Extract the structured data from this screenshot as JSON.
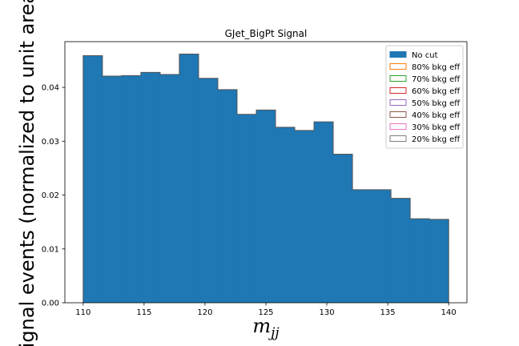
{
  "chart_data": {
    "type": "histogram",
    "title": "GJet_BigPt Signal",
    "xlabel": "m",
    "xlabel_sub": "jj",
    "ylabel": "Signal events (normalized to unit area)",
    "xlim": [
      108.5,
      141.5
    ],
    "ylim": [
      0,
      0.0485
    ],
    "x_ticks": [
      110,
      115,
      120,
      125,
      130,
      135,
      140
    ],
    "x_tick_labels": [
      "110",
      "115",
      "120",
      "125",
      "130",
      "135",
      "140"
    ],
    "y_ticks": [
      0.0,
      0.01,
      0.02,
      0.03,
      0.04
    ],
    "y_tick_labels": [
      "0.00",
      "0.01",
      "0.02",
      "0.03",
      "0.04"
    ],
    "bin_edges": [
      110,
      111.579,
      113.158,
      114.737,
      116.316,
      117.895,
      119.474,
      121.053,
      122.632,
      124.211,
      125.789,
      127.368,
      128.947,
      130.526,
      132.105,
      133.684,
      135.263,
      136.842,
      138.421,
      140
    ],
    "values": [
      0.0459,
      0.0421,
      0.0422,
      0.0428,
      0.0424,
      0.0462,
      0.0417,
      0.0396,
      0.035,
      0.0358,
      0.0326,
      0.032,
      0.0336,
      0.0276,
      0.021,
      0.021,
      0.0194,
      0.0156,
      0.0155
    ],
    "fill_color": "#1f77b4",
    "grid": false,
    "legend_position": "top-right",
    "legend": [
      {
        "label": "No cut",
        "color": "#1f77b4",
        "filled": true
      },
      {
        "label": "80% bkg eff",
        "color": "#ff7f0e",
        "filled": false
      },
      {
        "label": "70% bkg eff",
        "color": "#2ca02c",
        "filled": false
      },
      {
        "label": "60% bkg eff",
        "color": "#d62728",
        "filled": false
      },
      {
        "label": "50% bkg eff",
        "color": "#9467bd",
        "filled": false
      },
      {
        "label": "40% bkg eff",
        "color": "#8c564b",
        "filled": false
      },
      {
        "label": "30% bkg eff",
        "color": "#e377c2",
        "filled": false
      },
      {
        "label": "20% bkg eff",
        "color": "#7f7f7f",
        "filled": false
      }
    ]
  }
}
